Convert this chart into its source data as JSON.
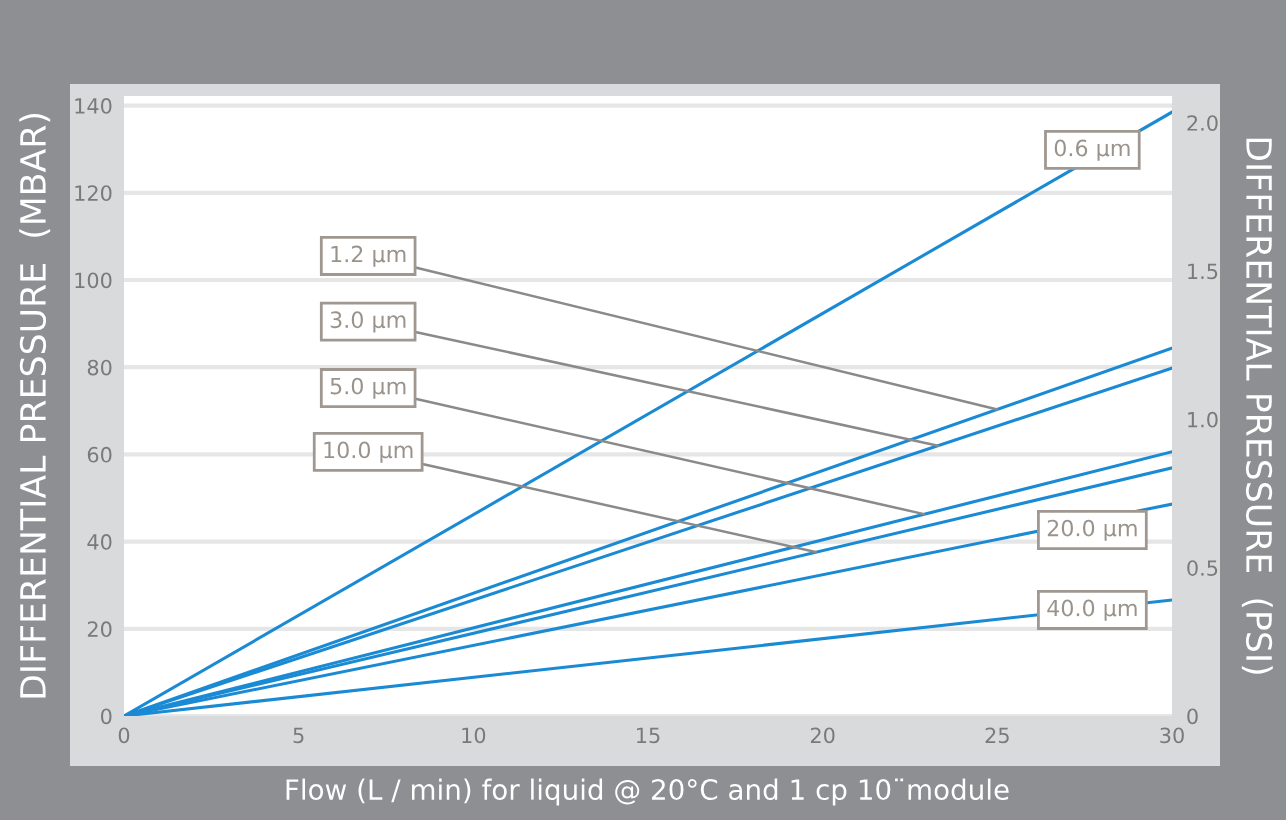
{
  "chart_data": {
    "type": "line",
    "xlabel": "Flow (L / min) for liquid @ 20°C and 1 cp 10¨module",
    "ylabel": "DIFFERENTIAL PRESSURE  (MBAR)",
    "y2label": "DIFFERENTIAL PRESSURE  (PSI)",
    "x": [
      0,
      30
    ],
    "series": [
      {
        "color": "#1a8ad4",
        "values": [
          0,
          138.5
        ]
      },
      {
        "color": "#1a8ad4",
        "values": [
          0,
          84.4
        ]
      },
      {
        "color": "#1a8ad4",
        "values": [
          0,
          79.8
        ]
      },
      {
        "color": "#1a8ad4",
        "values": [
          0,
          60.6
        ]
      },
      {
        "color": "#1a8ad4",
        "values": [
          0,
          56.9
        ]
      },
      {
        "color": "#1a8ad4",
        "values": [
          0,
          48.6
        ]
      },
      {
        "color": "#1a8ad4",
        "values": [
          0,
          26.6
        ]
      }
    ],
    "annotations": [
      {
        "text": "1.2 µm",
        "x": 25.0,
        "y": 70.3
      },
      {
        "text": "3.0 µm",
        "x": 23.3,
        "y": 62.0
      },
      {
        "text": "5.0 µm",
        "x": 22.9,
        "y": 46.3
      },
      {
        "text": "10.0 µm",
        "x": 19.8,
        "y": 37.6
      },
      {
        "text": "0.6 µm",
        "x": 27.5,
        "y": 127
      },
      {
        "text": "20.0 µm",
        "x": 27.5,
        "y": 44.5
      },
      {
        "text": "40.0 µm",
        "x": 27.5,
        "y": 24.4
      }
    ],
    "xlim": [
      0,
      30
    ],
    "xticks": [
      0,
      5,
      10,
      15,
      20,
      25,
      30
    ],
    "ylim": [
      0,
      142.2
    ],
    "yticks": [
      0,
      20,
      40,
      60,
      80,
      100,
      120,
      140
    ],
    "y2lim": [
      0,
      2.09
    ],
    "y2ticks": [
      0,
      {
        "value": 0.5,
        "label": "0.5"
      },
      {
        "value": 1.0,
        "label": "1.0"
      },
      {
        "value": 1.5,
        "label": "1.5"
      },
      {
        "value": 2.0,
        "label": "2.0"
      }
    ],
    "grid": "y",
    "marker": "none",
    "line_style": "solid"
  }
}
